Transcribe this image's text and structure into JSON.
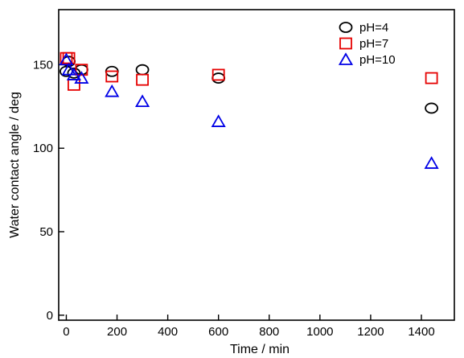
{
  "chart_data": {
    "type": "scatter",
    "title": "",
    "xlabel": "Time / min",
    "ylabel": "Water contact angle / deg",
    "xlim": [
      -30,
      1530
    ],
    "ylim": [
      -3,
      183
    ],
    "x_ticks": [
      0,
      200,
      400,
      600,
      800,
      1000,
      1200,
      1400
    ],
    "y_ticks": [
      0,
      50,
      100,
      150
    ],
    "x_tick_labels": [
      "0",
      "200",
      "400",
      "600",
      "800",
      "1000",
      "1200",
      "1400"
    ],
    "y_tick_labels": [
      "0",
      "50",
      "100",
      "150"
    ],
    "grid": false,
    "legend_position": "top-right",
    "series": [
      {
        "name": "pH=4",
        "marker": "circle",
        "color": "#000000",
        "x": [
          0,
          10,
          30,
          60,
          180,
          300,
          600,
          1440
        ],
        "y": [
          146,
          152,
          145,
          147,
          146,
          147,
          142,
          124
        ]
      },
      {
        "name": "pH=7",
        "marker": "square",
        "color": "#e60000",
        "x": [
          0,
          10,
          30,
          60,
          180,
          300,
          600,
          1440
        ],
        "y": [
          154,
          154,
          138,
          147,
          143,
          141,
          144,
          142
        ]
      },
      {
        "name": "pH=10",
        "marker": "triangle",
        "color": "#0000e6",
        "x": [
          0,
          10,
          30,
          60,
          180,
          300,
          600,
          1440
        ],
        "y": [
          153,
          147,
          144,
          142,
          134,
          128,
          116,
          91
        ]
      }
    ]
  }
}
